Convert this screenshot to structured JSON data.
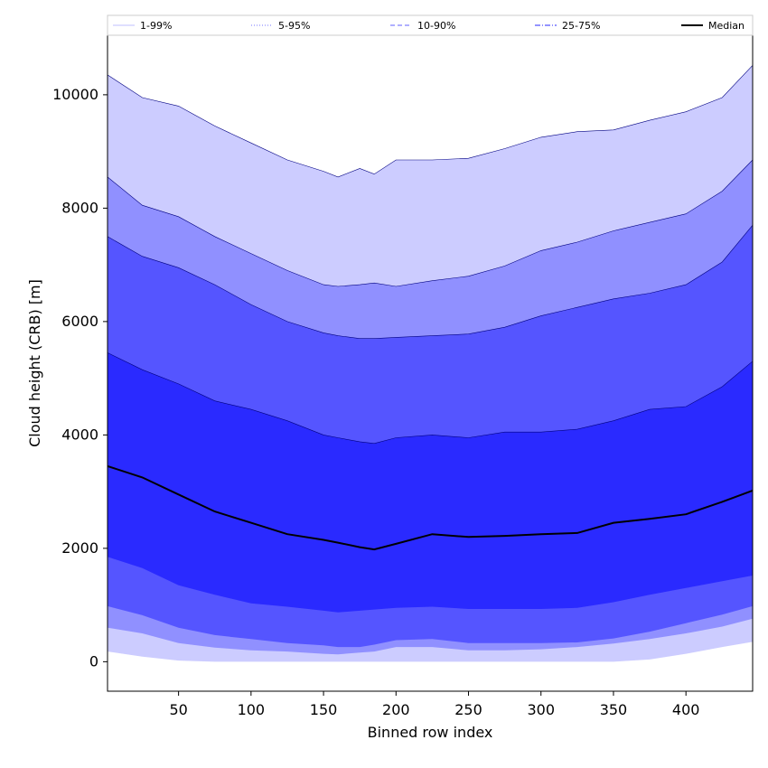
{
  "chart_data": {
    "type": "area",
    "title": "",
    "xlabel": "Binned row index",
    "ylabel": "Cloud height (CRB) [m]",
    "xlim": [
      1,
      446
    ],
    "ylim": [
      -520,
      11050
    ],
    "x_ticks": [
      50,
      100,
      150,
      200,
      250,
      300,
      350,
      400
    ],
    "y_ticks": [
      0,
      2000,
      4000,
      6000,
      8000,
      10000
    ],
    "grid": false,
    "legend_position": "top",
    "x": [
      1,
      25,
      50,
      75,
      100,
      125,
      150,
      160,
      175,
      185,
      200,
      225,
      250,
      275,
      300,
      325,
      350,
      375,
      400,
      425,
      446
    ],
    "bands": [
      {
        "name": "1-99%",
        "color": "#ccccff",
        "line_style": "solid",
        "lower": [
          180,
          90,
          20,
          0,
          0,
          0,
          0,
          0,
          0,
          0,
          0,
          0,
          0,
          0,
          0,
          0,
          0,
          40,
          140,
          260,
          350
        ],
        "upper": [
          10350,
          9950,
          9800,
          9450,
          9150,
          8850,
          8650,
          8550,
          8700,
          8600,
          8850,
          8850,
          8880,
          9050,
          9250,
          9350,
          9380,
          9550,
          9700,
          9950,
          10520
        ]
      },
      {
        "name": "5-95%",
        "color": "#9090ff",
        "line_style": "dotted",
        "lower": [
          600,
          500,
          330,
          250,
          200,
          180,
          140,
          130,
          160,
          180,
          260,
          260,
          200,
          200,
          220,
          260,
          320,
          400,
          500,
          620,
          760
        ],
        "upper": [
          8550,
          8050,
          7850,
          7500,
          7200,
          6900,
          6650,
          6620,
          6650,
          6680,
          6620,
          6720,
          6800,
          6980,
          7250,
          7400,
          7600,
          7750,
          7900,
          8300,
          8850
        ]
      },
      {
        "name": "10-90%",
        "color": "#5555ff",
        "line_style": "dashed",
        "lower": [
          980,
          820,
          600,
          470,
          400,
          330,
          290,
          260,
          260,
          300,
          380,
          400,
          330,
          330,
          330,
          340,
          410,
          530,
          680,
          830,
          980
        ],
        "upper": [
          7500,
          7150,
          6950,
          6650,
          6300,
          6000,
          5800,
          5750,
          5700,
          5700,
          5720,
          5750,
          5780,
          5900,
          6100,
          6250,
          6400,
          6500,
          6650,
          7050,
          7700
        ]
      },
      {
        "name": "25-75%",
        "color": "#2a2aff",
        "line_style": "dashdot",
        "lower": [
          1850,
          1650,
          1350,
          1180,
          1030,
          970,
          900,
          870,
          900,
          920,
          950,
          970,
          930,
          930,
          930,
          950,
          1050,
          1180,
          1300,
          1420,
          1520
        ],
        "upper": [
          5450,
          5150,
          4900,
          4600,
          4450,
          4250,
          4000,
          3950,
          3880,
          3850,
          3950,
          4000,
          3950,
          4050,
          4050,
          4100,
          4250,
          4450,
          4500,
          4850,
          5300
        ]
      }
    ],
    "median": {
      "name": "Median",
      "color": "#000000",
      "values": [
        3450,
        3250,
        2950,
        2650,
        2450,
        2250,
        2150,
        2100,
        2020,
        1980,
        2080,
        2250,
        2200,
        2220,
        2250,
        2270,
        2450,
        2520,
        2600,
        2820,
        3020
      ]
    },
    "legend": [
      {
        "label": "1-99%",
        "style": "solid"
      },
      {
        "label": "5-95%",
        "style": "dotted"
      },
      {
        "label": "10-90%",
        "style": "dashed"
      },
      {
        "label": "25-75%",
        "style": "dashdot"
      },
      {
        "label": "Median",
        "style": "median"
      }
    ]
  }
}
